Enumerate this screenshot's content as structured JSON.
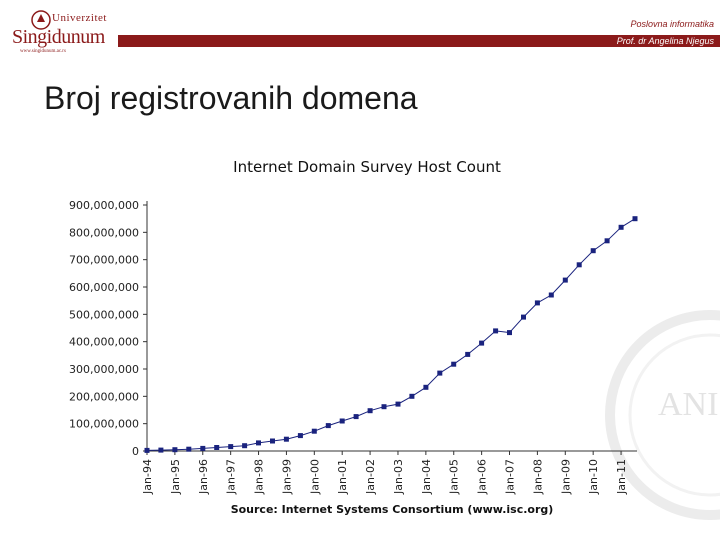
{
  "header": {
    "logo_top": "Univerzitet",
    "logo_name": "Singidunum",
    "logo_url": "www.singidunum.ac.rs",
    "course": "Poslovna informatika",
    "professor": "Prof. dr Angelina Njegus"
  },
  "slide": {
    "title": "Broj registrovanih domena"
  },
  "colors": {
    "brand": "#8b1a1a",
    "series": "#1a237e"
  },
  "chart_data": {
    "type": "line",
    "title": "Internet Domain Survey Host Count",
    "source": "Source: Internet Systems Consortium (www.isc.org)",
    "y_tick_labels": [
      "0",
      "100,000,000",
      "200,000,000",
      "300,000,000",
      "400,000,000",
      "500,000,000",
      "600,000,000",
      "700,000,000",
      "800,000,000",
      "900,000,000"
    ],
    "ylim": [
      0,
      900000000
    ],
    "x_tick_labels": [
      "Jan-94",
      "Jan-95",
      "Jan-96",
      "Jan-97",
      "Jan-98",
      "Jan-99",
      "Jan-00",
      "Jan-01",
      "Jan-02",
      "Jan-03",
      "Jan-04",
      "Jan-05",
      "Jan-06",
      "Jan-07",
      "Jan-08",
      "Jan-09",
      "Jan-10",
      "Jan-11"
    ],
    "grid": false,
    "marker": "square",
    "series": [
      {
        "x": [
          1994.0,
          1994.5,
          1995.0,
          1995.5,
          1996.0,
          1996.5,
          1997.0,
          1997.5,
          1998.0,
          1998.5,
          1999.0,
          1999.5,
          2000.0,
          2000.5,
          2001.0,
          2001.5,
          2002.0,
          2002.5,
          2003.0,
          2003.5,
          2004.0,
          2004.5,
          2005.0,
          2005.5,
          2006.0,
          2006.5,
          2007.0,
          2007.5,
          2008.0,
          2008.5,
          2009.0,
          2009.5,
          2010.0,
          2010.5,
          2011.0,
          2011.5
        ],
        "values": [
          2200000,
          3200000,
          4900000,
          6600000,
          9500000,
          12900000,
          16100000,
          19500000,
          29700000,
          36700000,
          43200000,
          56200000,
          72400000,
          93000000,
          109600000,
          125900000,
          147300000,
          162100000,
          171600000,
          200000000,
          233000000,
          285100000,
          317600000,
          353300000,
          394900000,
          439300000,
          433200000,
          489800000,
          541700000,
          570900000,
          625200000,
          681100000,
          732700000,
          768900000,
          818400000,
          849900000
        ]
      }
    ]
  }
}
